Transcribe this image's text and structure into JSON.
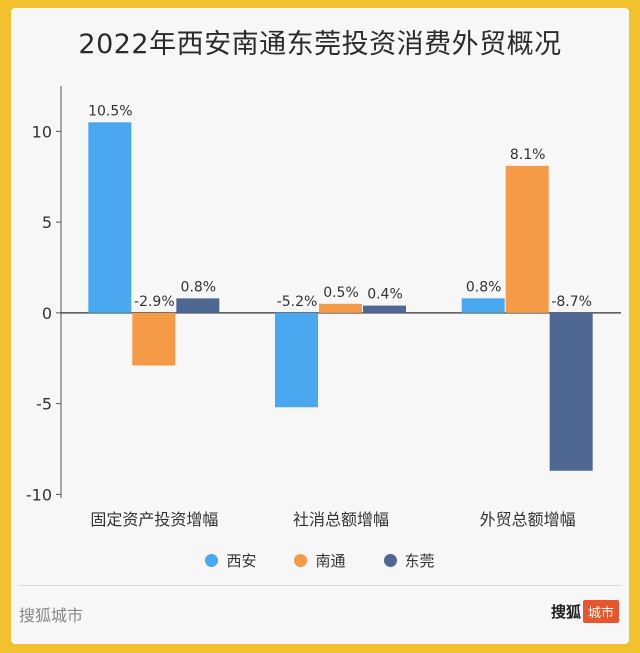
{
  "title": "2022年西安南通东莞投资消费外贸概况",
  "footer": {
    "watermark_left": "搜狐城市",
    "brand": "搜狐",
    "badge": "城市"
  },
  "chart_data": {
    "type": "bar",
    "categories": [
      "固定资产投资增幅",
      "社消总额增幅",
      "外贸总额增幅"
    ],
    "series": [
      {
        "name": "西安",
        "color": "#4aa8f0",
        "values": [
          10.5,
          -5.2,
          0.8
        ],
        "labels": [
          "10.5%",
          "-5.2%",
          "0.8%"
        ]
      },
      {
        "name": "南通",
        "color": "#f59a47",
        "values": [
          -2.9,
          0.5,
          8.1
        ],
        "labels": [
          "-2.9%",
          "0.5%",
          "8.1%"
        ]
      },
      {
        "name": "东莞",
        "color": "#4f6793",
        "values": [
          0.8,
          0.4,
          -8.7
        ],
        "labels": [
          "0.8%",
          "0.4%",
          "-8.7%"
        ]
      }
    ],
    "yticks": [
      10,
      5,
      0,
      -5,
      -10
    ],
    "ytick_labels": [
      "10",
      "5",
      "0",
      "-5",
      "-10"
    ],
    "ylim": [
      -10.2,
      12.5
    ],
    "legend_position": "bottom",
    "grid": false
  }
}
